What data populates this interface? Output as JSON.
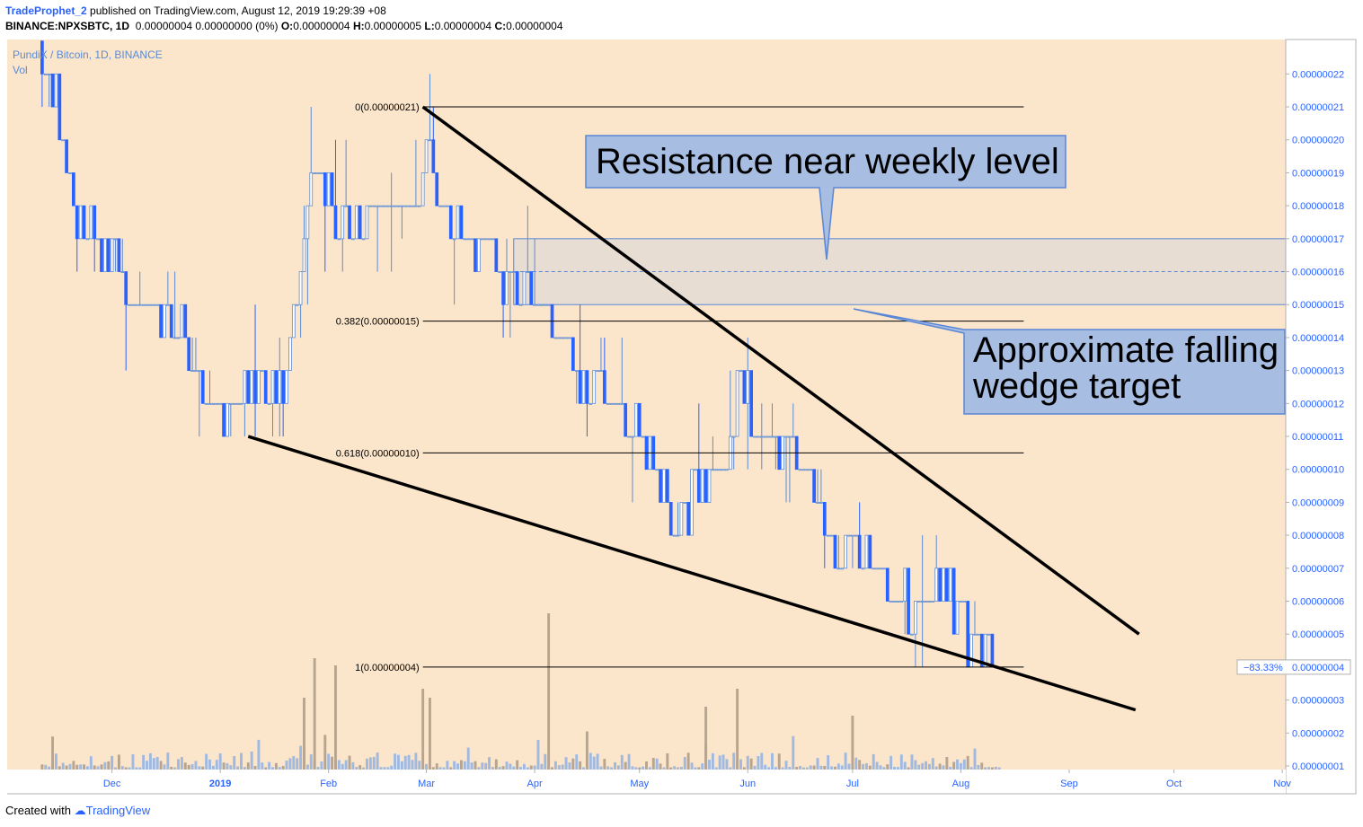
{
  "header": {
    "author": "TradeProphet_2",
    "published": "published on TradingView.com, August 12, 2019 19:29:39 +08",
    "symbol": "BINANCE:NPXSBTC, 1D",
    "summary": "0.00000004 0.00000000 (0%)",
    "o_label": "O:",
    "o": "0.00000004",
    "h_label": "H:",
    "h": "0.00000005",
    "l_label": "L:",
    "l": "0.00000004",
    "c_label": "C:",
    "c": "0.00000004"
  },
  "legend": {
    "series": "PundiX / Bitcoin, 1D, BINANCE",
    "vol": "Vol"
  },
  "footer": {
    "created": "Created with",
    "brand": "TradingView"
  },
  "price_badge": {
    "pct": "−83.33%",
    "price": "0.00000004"
  },
  "annotations": {
    "resistance": "Resistance near weekly level",
    "target_line1": "Approximate falling",
    "target_line2": "wedge target"
  },
  "colors": {
    "plot_bg": "#fce6cb",
    "up": "#5b8bd3",
    "down": "#2962ff",
    "vol_up": "#a0b9e0",
    "vol_down": "#b8a590",
    "zone": "#e7ddd3",
    "callout_bg": "#a7bde2",
    "callout_border": "#5a86d6",
    "axis_text": "#2962ff"
  },
  "chart_data": {
    "type": "candlestick",
    "title": "PundiX / Bitcoin, 1D, BINANCE",
    "y_axis_ticks": [
      "0.00000001",
      "0.00000002",
      "0.00000003",
      "0.00000004",
      "0.00000005",
      "0.00000006",
      "0.00000007",
      "0.00000008",
      "0.00000009",
      "0.00000010",
      "0.00000011",
      "0.00000012",
      "0.00000013",
      "0.00000014",
      "0.00000015",
      "0.00000016",
      "0.00000017",
      "0.00000018",
      "0.00000019",
      "0.00000020",
      "0.00000021",
      "0.00000022"
    ],
    "x_axis_labels": [
      {
        "label": "Dec",
        "date": "2018-12-01"
      },
      {
        "label": "2019",
        "date": "2019-01-01"
      },
      {
        "label": "Feb",
        "date": "2019-02-01"
      },
      {
        "label": "Mar",
        "date": "2019-03-01"
      },
      {
        "label": "Apr",
        "date": "2019-04-01"
      },
      {
        "label": "May",
        "date": "2019-05-01"
      },
      {
        "label": "Jun",
        "date": "2019-06-01"
      },
      {
        "label": "Jul",
        "date": "2019-07-01"
      },
      {
        "label": "Aug",
        "date": "2019-08-01"
      },
      {
        "label": "Sep",
        "date": "2019-09-01"
      },
      {
        "label": "Oct",
        "date": "2019-10-01"
      },
      {
        "label": "Nov",
        "date": "2019-11-01"
      }
    ],
    "x_range": [
      "2018-11-01",
      "2019-11-02"
    ],
    "y_range": [
      1e-08,
      2.25e-07
    ],
    "price_path": [
      {
        "date": "2018-11-11",
        "price": 2.25e-07
      },
      {
        "date": "2018-11-15",
        "price": 2.1e-07
      },
      {
        "date": "2018-11-20",
        "price": 1.8e-07
      },
      {
        "date": "2018-11-25",
        "price": 1.7e-07
      },
      {
        "date": "2018-12-03",
        "price": 1.6e-07
      },
      {
        "date": "2018-12-10",
        "price": 1.5e-07
      },
      {
        "date": "2018-12-20",
        "price": 1.45e-07
      },
      {
        "date": "2018-12-27",
        "price": 1.2e-07
      },
      {
        "date": "2019-01-01",
        "price": 1.15e-07
      },
      {
        "date": "2019-01-08",
        "price": 1.25e-07
      },
      {
        "date": "2019-01-15",
        "price": 1.25e-07
      },
      {
        "date": "2019-01-20",
        "price": 1.3e-07
      },
      {
        "date": "2019-01-25",
        "price": 1.7e-07
      },
      {
        "date": "2019-01-28",
        "price": 1.9e-07
      },
      {
        "date": "2019-02-03",
        "price": 1.8e-07
      },
      {
        "date": "2019-02-10",
        "price": 1.75e-07
      },
      {
        "date": "2019-02-17",
        "price": 1.85e-07
      },
      {
        "date": "2019-02-25",
        "price": 1.8e-07
      },
      {
        "date": "2019-03-01",
        "price": 2e-07
      },
      {
        "date": "2019-03-04",
        "price": 1.8e-07
      },
      {
        "date": "2019-03-10",
        "price": 1.7e-07
      },
      {
        "date": "2019-03-20",
        "price": 1.65e-07
      },
      {
        "date": "2019-03-28",
        "price": 1.55e-07
      },
      {
        "date": "2019-04-05",
        "price": 1.45e-07
      },
      {
        "date": "2019-04-12",
        "price": 1.3e-07
      },
      {
        "date": "2019-04-20",
        "price": 1.25e-07
      },
      {
        "date": "2019-04-28",
        "price": 1.15e-07
      },
      {
        "date": "2019-05-05",
        "price": 1e-07
      },
      {
        "date": "2019-05-12",
        "price": 8e-08
      },
      {
        "date": "2019-05-18",
        "price": 9.5e-08
      },
      {
        "date": "2019-05-26",
        "price": 1e-07
      },
      {
        "date": "2019-05-29",
        "price": 1.3e-07
      },
      {
        "date": "2019-06-03",
        "price": 1.15e-07
      },
      {
        "date": "2019-06-12",
        "price": 1.05e-07
      },
      {
        "date": "2019-06-20",
        "price": 9.5e-08
      },
      {
        "date": "2019-06-25",
        "price": 7.5e-08
      },
      {
        "date": "2019-07-02",
        "price": 8e-08
      },
      {
        "date": "2019-07-10",
        "price": 7e-08
      },
      {
        "date": "2019-07-18",
        "price": 5.5e-08
      },
      {
        "date": "2019-07-25",
        "price": 6.5e-08
      },
      {
        "date": "2019-08-01",
        "price": 5.5e-08
      },
      {
        "date": "2019-08-06",
        "price": 4.5e-08
      },
      {
        "date": "2019-08-12",
        "price": 4e-08
      }
    ],
    "volume_spikes": [
      {
        "date": "2019-01-25",
        "rel": 0.4
      },
      {
        "date": "2019-01-28",
        "rel": 0.62
      },
      {
        "date": "2019-02-03",
        "rel": 0.58
      },
      {
        "date": "2019-02-28",
        "rel": 0.45
      },
      {
        "date": "2019-03-02",
        "rel": 0.4
      },
      {
        "date": "2019-04-05",
        "rel": 0.87
      },
      {
        "date": "2019-05-20",
        "rel": 0.35
      },
      {
        "date": "2019-05-29",
        "rel": 0.45
      },
      {
        "date": "2019-07-01",
        "rel": 0.3
      }
    ],
    "fib_levels": [
      {
        "label": "0(0.00000021)",
        "value": 2.1e-07
      },
      {
        "label": "0.382(0.00000015)",
        "value": 1.45e-07
      },
      {
        "label": "0.618(0.00000010)",
        "value": 1.05e-07
      },
      {
        "label": "1(0.00000004)",
        "value": 4e-08
      }
    ],
    "fib_start": "2019-02-28",
    "fib_end": "2019-08-19",
    "resistance_zone": {
      "from": 1.5e-07,
      "to": 1.7e-07,
      "mid": 1.6e-07,
      "start": "2019-03-26",
      "end": "2019-11-02"
    },
    "wedge_upper": [
      {
        "date": "2019-02-28",
        "price": 2.1e-07
      },
      {
        "date": "2019-09-21",
        "price": 5e-08
      }
    ],
    "wedge_lower": [
      {
        "date": "2019-01-09",
        "price": 1.1e-07
      },
      {
        "date": "2019-09-20",
        "price": 2.7e-08
      }
    ]
  }
}
